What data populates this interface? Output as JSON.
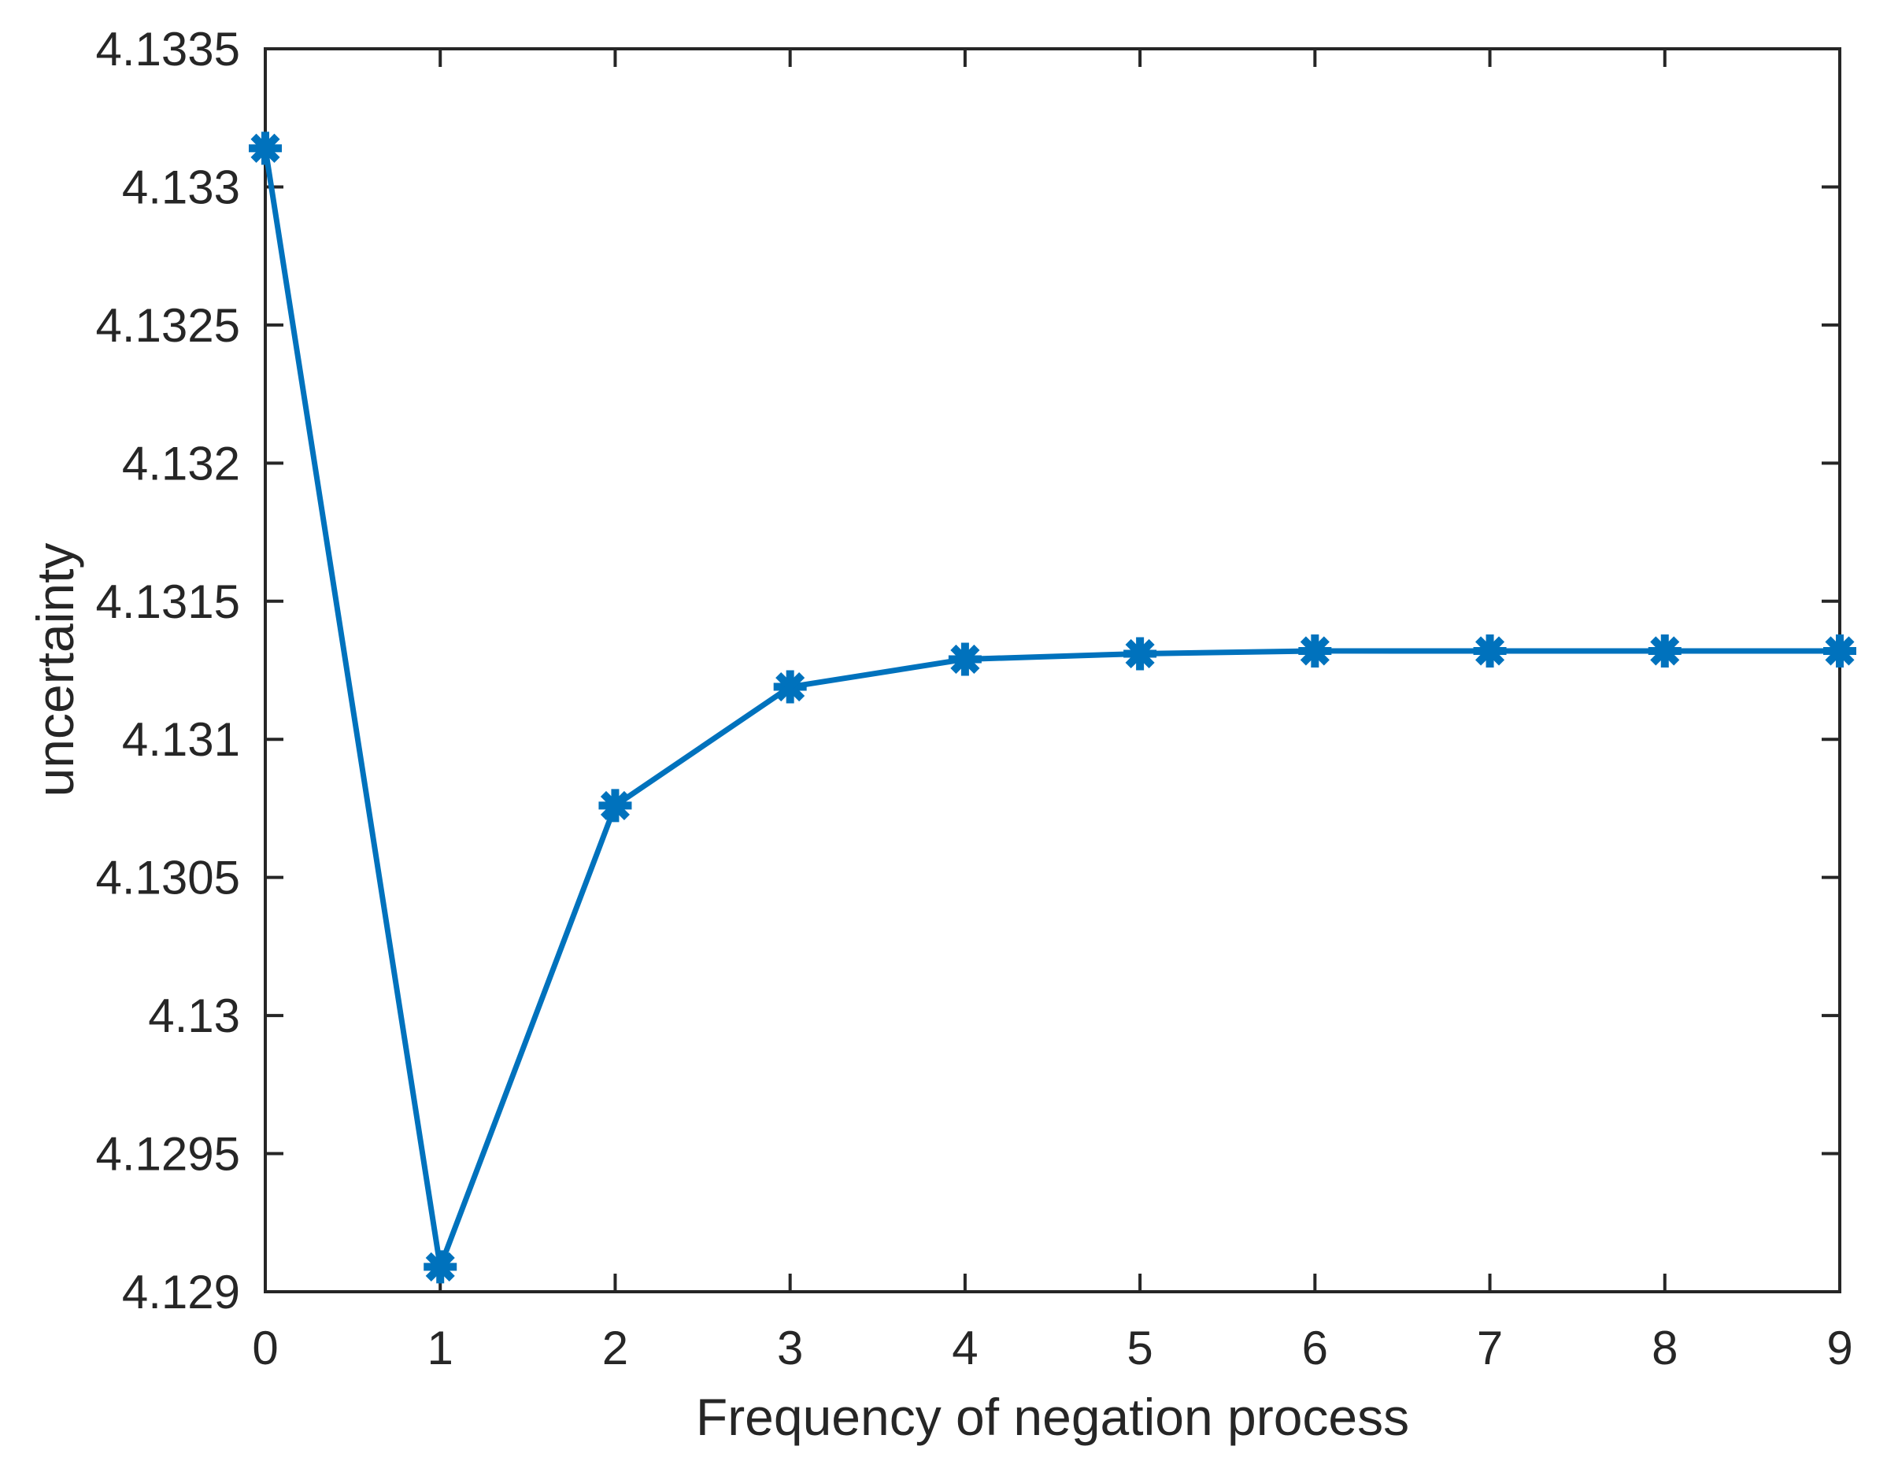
{
  "figure": {
    "background_color": "#ffffff",
    "axis_color": "#262626",
    "text_color": "#262626"
  },
  "chart_data": {
    "type": "line",
    "title": "",
    "xlabel": "Frequency of negation process",
    "ylabel": "uncertainty",
    "x": [
      0,
      1,
      2,
      3,
      4,
      5,
      6,
      7,
      8,
      9
    ],
    "series": [
      {
        "name": "uncertainty",
        "values": [
          4.13314,
          4.12909,
          4.13076,
          4.13119,
          4.13129,
          4.13131,
          4.13132,
          4.13132,
          4.13132,
          4.13132
        ],
        "color": "#0072BD",
        "line_width": 7,
        "marker": "asterisk",
        "marker_size": 21
      }
    ],
    "xlim": [
      0,
      9
    ],
    "ylim": [
      4.129,
      4.1335
    ],
    "x_ticks": [
      0,
      1,
      2,
      3,
      4,
      5,
      6,
      7,
      8,
      9
    ],
    "x_tick_labels": [
      "0",
      "1",
      "2",
      "3",
      "4",
      "5",
      "6",
      "7",
      "8",
      "9"
    ],
    "y_ticks": [
      4.129,
      4.1295,
      4.13,
      4.1305,
      4.131,
      4.1315,
      4.132,
      4.1325,
      4.133,
      4.1335
    ],
    "y_tick_labels": [
      "4.129",
      "4.1295",
      "4.13",
      "4.1305",
      "4.131",
      "4.1315",
      "4.132",
      "4.1325",
      "4.133",
      "4.1335"
    ],
    "grid": false,
    "legend_position": "none",
    "box": true,
    "tick_direction": "in"
  }
}
